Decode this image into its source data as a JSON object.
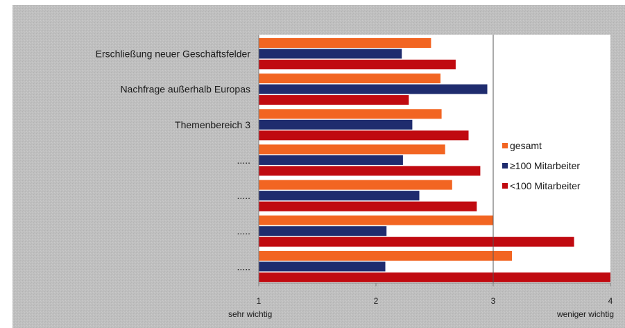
{
  "chart_data": {
    "type": "bar",
    "orientation": "horizontal",
    "categories": [
      "Erschließung neuer  Geschäftsfelder",
      "Nachfrage außerhalb Europas",
      "Themenbereich 3",
      ".....",
      ".....",
      ".....",
      "....."
    ],
    "series": [
      {
        "name": "gesamt",
        "color": "#F26522",
        "values": [
          2.47,
          2.55,
          2.56,
          2.59,
          2.65,
          3.0,
          3.16
        ]
      },
      {
        "name": "≥100 Mitarbeiter",
        "color": "#1F2C6E",
        "values": [
          2.22,
          2.95,
          2.31,
          2.23,
          2.37,
          2.09,
          2.08
        ]
      },
      {
        "name": "<100 Mitarbeiter",
        "color": "#C00A10",
        "values": [
          2.68,
          2.28,
          2.79,
          2.89,
          2.86,
          3.69,
          4.0
        ]
      }
    ],
    "x_ticks": [
      "1",
      "2",
      "3",
      "4"
    ],
    "xlim": [
      1,
      4
    ],
    "x_min_label": "sehr wichtig",
    "x_max_label": "weniger wichtig",
    "reference_line_x": 3,
    "grid": false,
    "legend_position": "right"
  }
}
